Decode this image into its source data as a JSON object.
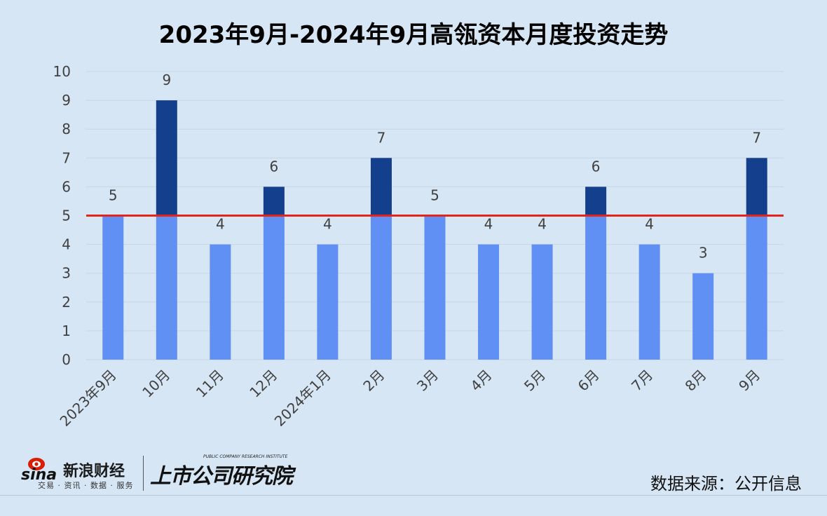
{
  "chart_data": {
    "type": "bar",
    "title": "2023年9月-2024年9月高瓴资本月度投资走势",
    "categories": [
      "2023年9月",
      "10月",
      "11月",
      "12月",
      "2024年1月",
      "2月",
      "3月",
      "4月",
      "5月",
      "6月",
      "7月",
      "8月",
      "9月"
    ],
    "values": [
      5,
      9,
      4,
      6,
      4,
      7,
      5,
      4,
      4,
      6,
      4,
      3,
      7
    ],
    "ylim": [
      0,
      10
    ],
    "yticks": [
      "0",
      "1",
      "2",
      "3",
      "4",
      "5",
      "6",
      "7",
      "8",
      "9",
      "10"
    ],
    "reference_line": 5,
    "grid": true,
    "colors": {
      "base_bar": "#6190f5",
      "excess_bar": "#143f8c",
      "reference_line": "#e3241b",
      "gridline": "#c7d6e3"
    }
  },
  "footer": {
    "sina_brand": "新浪财经",
    "sina_logo_text": "sina",
    "sina_tagline": "交易 · 资讯 · 数据 · 服务",
    "research_logo": "上市公司研究院",
    "research_subtitle": "PUBLIC COMPANY RESEARCH INSTITUTE",
    "source": "数据来源：公开信息"
  }
}
